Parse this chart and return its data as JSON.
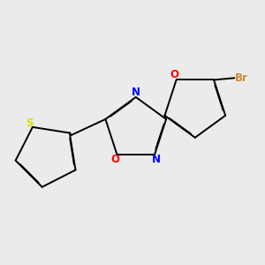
{
  "background_color": "#ebebeb",
  "bond_color": "#000000",
  "atom_colors": {
    "N": "#0000ff",
    "O": "#ff0000",
    "S": "#dddd00",
    "Br": "#cc8833"
  },
  "font_size": 8.5,
  "lw": 1.4,
  "fig_size": [
    3.0,
    3.0
  ],
  "dpi": 100
}
